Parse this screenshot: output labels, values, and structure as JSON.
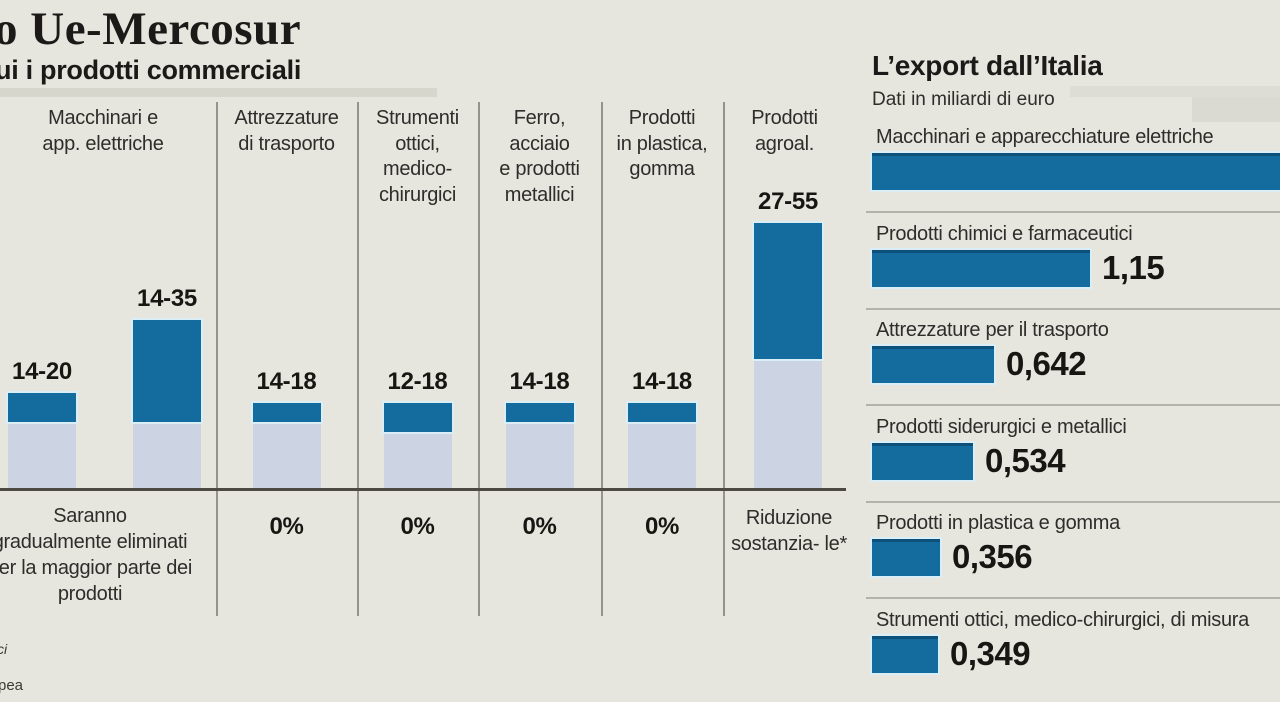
{
  "page": {
    "title": "o Ue-Mercosur",
    "subtitle": "ui i prodotti commerciali"
  },
  "colors": {
    "background": "#e7e6de",
    "bar_dark_blue": "#136b9e",
    "bar_light_blue": "#ccd3e3",
    "bar_pale_outline": "#d9eef7",
    "axis": "#4b4942",
    "text": "#1d1c1a"
  },
  "footnotes": {
    "line1": "ci",
    "line2": "pea"
  },
  "chart_data": [
    {
      "type": "bar",
      "title": "ui i prodotti commerciali",
      "description": "Range bars of tariff percentages per product category; light segment = 0 to min, dark segment = min to max",
      "ylim": [
        0,
        60
      ],
      "grid": false,
      "columns": [
        {
          "category": "Macchinari e\napp. elettriche",
          "bars": [
            {
              "range": "14-20",
              "min": 14,
              "max": 20
            },
            {
              "range": "14-35",
              "min": 14,
              "max": 35
            }
          ],
          "outcome": "Saranno\ngradualmente eliminati\nper la maggior parte dei\nprodotti"
        },
        {
          "category": "Attrezzature\ndi trasporto",
          "bars": [
            {
              "range": "14-18",
              "min": 14,
              "max": 18
            }
          ],
          "outcome": "0%"
        },
        {
          "category": "Strumenti\nottici,\nmedico-\nchirurgici",
          "bars": [
            {
              "range": "12-18",
              "min": 12,
              "max": 18
            }
          ],
          "outcome": "0%"
        },
        {
          "category": "Ferro,\nacciaio\ne prodotti\nmetallici",
          "bars": [
            {
              "range": "14-18",
              "min": 14,
              "max": 18
            }
          ],
          "outcome": "0%"
        },
        {
          "category": "Prodotti\nin plastica,\ngomma",
          "bars": [
            {
              "range": "14-18",
              "min": 14,
              "max": 18
            }
          ],
          "outcome": "0%"
        },
        {
          "category": "Prodotti\nagroal.",
          "bars": [
            {
              "range": "27-55",
              "min": 27,
              "max": 55
            }
          ],
          "outcome": "Riduzione sostanzia- le*"
        }
      ]
    },
    {
      "type": "bar",
      "title": "L’export dall’Italia",
      "subtitle": "Dati in miliardi di euro",
      "orientation": "horizontal",
      "rows": [
        {
          "label": "Macchinari e apparecchiature elettriche",
          "value": null,
          "value_label": ""
        },
        {
          "label": "Prodotti chimici e farmaceutici",
          "value": 1.15,
          "value_label": "1,15"
        },
        {
          "label": "Attrezzature per il trasporto",
          "value": 0.642,
          "value_label": "0,642"
        },
        {
          "label": "Prodotti siderurgici e metallici",
          "value": 0.534,
          "value_label": "0,534"
        },
        {
          "label": "Prodotti in plastica e gomma",
          "value": 0.356,
          "value_label": "0,356"
        },
        {
          "label": "Strumenti ottici, medico-chirurgici, di misura",
          "value": 0.349,
          "value_label": "0,349"
        }
      ]
    }
  ]
}
